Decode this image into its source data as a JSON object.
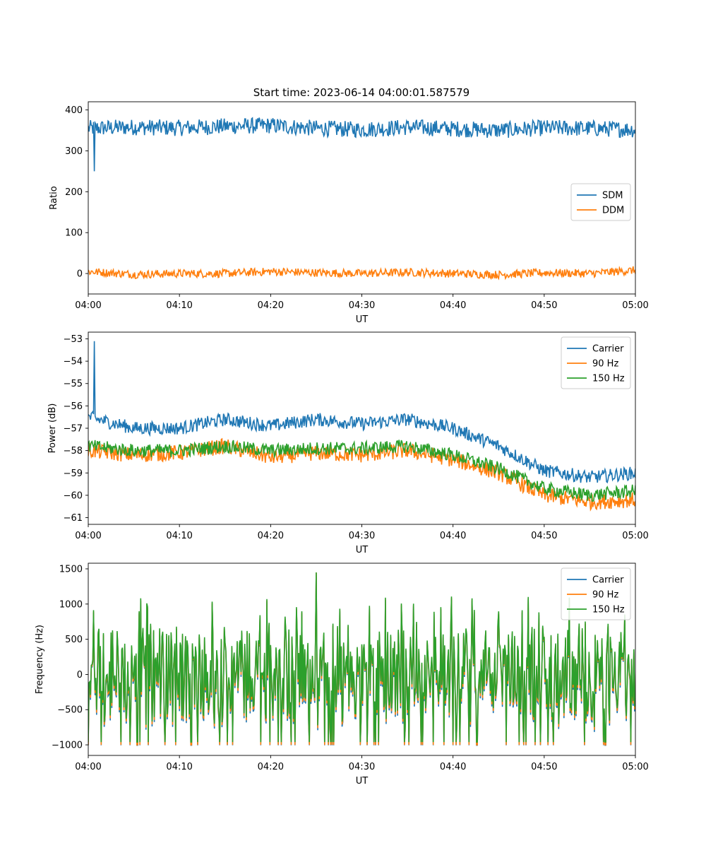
{
  "figure": {
    "title": "Start time: 2023-06-14 04:00:01.587579"
  },
  "chart_data": [
    {
      "type": "line",
      "xlabel": "UT",
      "ylabel": "Ratio",
      "xlim": [
        "04:00",
        "05:00"
      ],
      "ylim": [
        -50,
        420
      ],
      "xticks": [
        "04:00",
        "04:10",
        "04:20",
        "04:30",
        "04:40",
        "04:50",
        "05:00"
      ],
      "yticks": [
        0,
        100,
        200,
        300,
        400
      ],
      "legend_position": "center-right",
      "grid": false,
      "x": [
        "04:00",
        "04:05",
        "04:10",
        "04:15",
        "04:20",
        "04:25",
        "04:30",
        "04:35",
        "04:40",
        "04:45",
        "04:50",
        "04:55",
        "05:00"
      ],
      "series": [
        {
          "name": "SDM",
          "color": "#1f77b4",
          "values": [
            355,
            358,
            356,
            360,
            362,
            355,
            352,
            358,
            354,
            350,
            356,
            355,
            352
          ],
          "noise": 20,
          "spike": {
            "x": "04:00:40",
            "y": 250
          }
        },
        {
          "name": "DDM",
          "color": "#ff7f0e",
          "values": [
            5,
            -2,
            0,
            0,
            5,
            2,
            0,
            3,
            0,
            -3,
            2,
            0,
            8
          ],
          "noise": 10
        }
      ]
    },
    {
      "type": "line",
      "xlabel": "UT",
      "ylabel": "Power (dB)",
      "xlim": [
        "04:00",
        "05:00"
      ],
      "ylim": [
        -61.3,
        -52.7
      ],
      "xticks": [
        "04:00",
        "04:10",
        "04:20",
        "04:30",
        "04:40",
        "04:50",
        "05:00"
      ],
      "yticks": [
        -53,
        -54,
        -55,
        -56,
        -57,
        -58,
        -59,
        -60,
        -61
      ],
      "legend_position": "top-right",
      "grid": false,
      "x": [
        "04:00",
        "04:05",
        "04:10",
        "04:15",
        "04:20",
        "04:25",
        "04:30",
        "04:35",
        "04:40",
        "04:45",
        "04:50",
        "04:55",
        "05:00"
      ],
      "series": [
        {
          "name": "Carrier",
          "color": "#1f77b4",
          "values": [
            -56.5,
            -57.0,
            -57.0,
            -56.6,
            -56.9,
            -56.6,
            -56.8,
            -56.6,
            -57.0,
            -57.8,
            -58.9,
            -59.2,
            -59.0
          ],
          "noise": 0.3,
          "spike": {
            "x": "04:00:40",
            "y": -53.1
          }
        },
        {
          "name": "90 Hz",
          "color": "#ff7f0e",
          "values": [
            -58.0,
            -58.2,
            -58.1,
            -57.8,
            -58.3,
            -58.1,
            -58.2,
            -58.0,
            -58.4,
            -59.0,
            -60.0,
            -60.3,
            -60.2
          ],
          "noise": 0.35
        },
        {
          "name": "150 Hz",
          "color": "#2ca02c",
          "values": [
            -57.8,
            -58.0,
            -58.0,
            -57.8,
            -58.0,
            -57.9,
            -57.9,
            -57.8,
            -58.2,
            -58.8,
            -59.7,
            -60.0,
            -59.8
          ],
          "noise": 0.3
        }
      ]
    },
    {
      "type": "line",
      "xlabel": "UT",
      "ylabel": "Frequency (Hz)",
      "xlim": [
        "04:00",
        "05:00"
      ],
      "ylim": [
        -1150,
        1580
      ],
      "xticks": [
        "04:00",
        "04:10",
        "04:20",
        "04:30",
        "04:40",
        "04:50",
        "05:00"
      ],
      "yticks": [
        -1000,
        -500,
        0,
        500,
        1000,
        1500
      ],
      "legend_position": "top-right",
      "grid": false,
      "value_range": [
        -1000,
        1450
      ],
      "peak": {
        "x": "04:25",
        "y": 1450
      },
      "series": [
        {
          "name": "Carrier",
          "color": "#1f77b4",
          "offset": -30
        },
        {
          "name": "90 Hz",
          "color": "#ff7f0e",
          "offset": 0
        },
        {
          "name": "150 Hz",
          "color": "#2ca02c",
          "offset": 40
        }
      ]
    }
  ]
}
